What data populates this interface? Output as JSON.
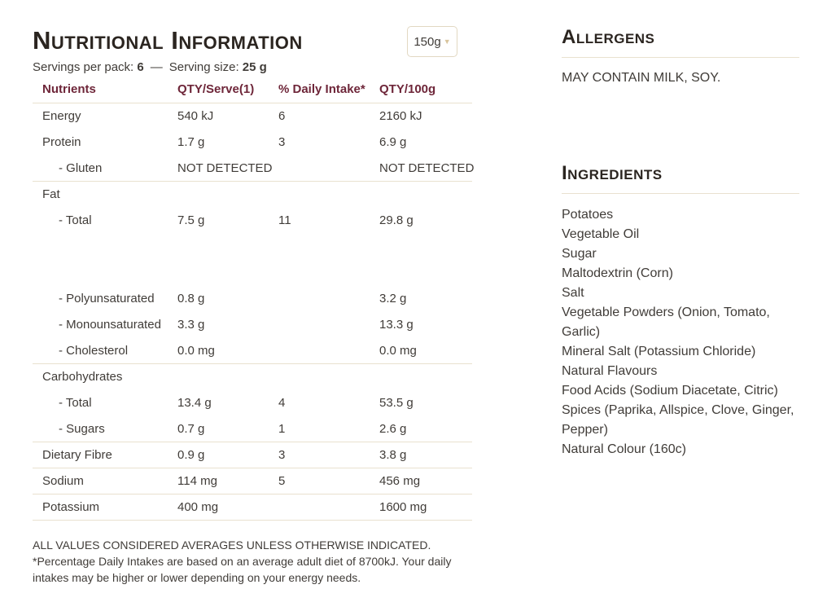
{
  "title": "Nutritional Information",
  "size_selector": {
    "value": "150g",
    "caret": "▼"
  },
  "serving_info": {
    "label1": "Servings per pack:",
    "value1": "6",
    "dash": "—",
    "label2": "Serving size:",
    "value2": "25 g"
  },
  "table": {
    "columns": [
      "Nutrients",
      "QTY/Serve(1)",
      "% Daily Intake*",
      "QTY/100g"
    ],
    "rows": [
      {
        "label": "Energy",
        "qty_serve": "540 kJ",
        "daily_intake": "6",
        "qty_100g": "2160 kJ"
      },
      {
        "label": "Protein",
        "qty_serve": "1.7 g",
        "daily_intake": "3",
        "qty_100g": "6.9 g"
      },
      {
        "label": "- Gluten",
        "indent": true,
        "qty_serve": "NOT DETECTED",
        "daily_intake": "",
        "qty_100g": "NOT DETECTED",
        "divider_after": true
      },
      {
        "label": "Fat",
        "group": true,
        "qty_serve": "",
        "daily_intake": "",
        "qty_100g": ""
      },
      {
        "label": "- Total",
        "indent": true,
        "qty_serve": "7.5 g",
        "daily_intake": "11",
        "qty_100g": "29.8 g",
        "gap_after": true
      },
      {
        "label": "- Polyunsaturated",
        "indent": true,
        "qty_serve": "0.8 g",
        "daily_intake": "",
        "qty_100g": "3.2 g"
      },
      {
        "label": "- Monounsaturated",
        "indent": true,
        "qty_serve": "3.3 g",
        "daily_intake": "",
        "qty_100g": "13.3 g"
      },
      {
        "label": "- Cholesterol",
        "indent": true,
        "qty_serve": "0.0 mg",
        "daily_intake": "",
        "qty_100g": "0.0 mg",
        "divider_after": true
      },
      {
        "label": "Carbohydrates",
        "group": true,
        "qty_serve": "",
        "daily_intake": "",
        "qty_100g": ""
      },
      {
        "label": "- Total",
        "indent": true,
        "qty_serve": "13.4 g",
        "daily_intake": "4",
        "qty_100g": "53.5 g"
      },
      {
        "label": "- Sugars",
        "indent": true,
        "qty_serve": "0.7 g",
        "daily_intake": "1",
        "qty_100g": "2.6 g",
        "divider_after": true
      },
      {
        "label": "Dietary Fibre",
        "qty_serve": "0.9 g",
        "daily_intake": "3",
        "qty_100g": "3.8 g",
        "divider_after": true
      },
      {
        "label": "Sodium",
        "qty_serve": "114 mg",
        "daily_intake": "5",
        "qty_100g": "456 mg",
        "divider_after": true
      },
      {
        "label": "Potassium",
        "qty_serve": "400 mg",
        "daily_intake": "",
        "qty_100g": "1600 mg",
        "divider_after": true
      }
    ],
    "footnotes": [
      "ALL VALUES CONSIDERED AVERAGES UNLESS OTHERWISE INDICATED.",
      "*Percentage Daily Intakes are based on an average adult diet of 8700kJ. Your daily intakes may be higher or lower depending on your energy needs."
    ]
  },
  "allergens": {
    "heading": "Allergens",
    "text": "MAY CONTAIN MILK, SOY."
  },
  "ingredients": {
    "heading": "Ingredients",
    "items": [
      "Potatoes",
      "Vegetable Oil",
      "Sugar",
      "Maltodextrin (Corn)",
      "Salt",
      "Vegetable Powders (Onion, Tomato, Garlic)",
      "Mineral Salt (Potassium Chloride)",
      "Natural Flavours",
      "Food Acids (Sodium Diacetate, Citric)",
      "Spices (Paprika, Allspice, Clove, Ginger, Pepper)",
      "Natural Colour (160c)"
    ]
  },
  "colors": {
    "heading_text": "#2b2520",
    "table_header_maroon": "#6e2639",
    "body_text": "#403c38",
    "divider_tan": "#e9e1cf",
    "dropdown_border": "#e2d8c2",
    "caret_tan": "#d9c59d"
  }
}
